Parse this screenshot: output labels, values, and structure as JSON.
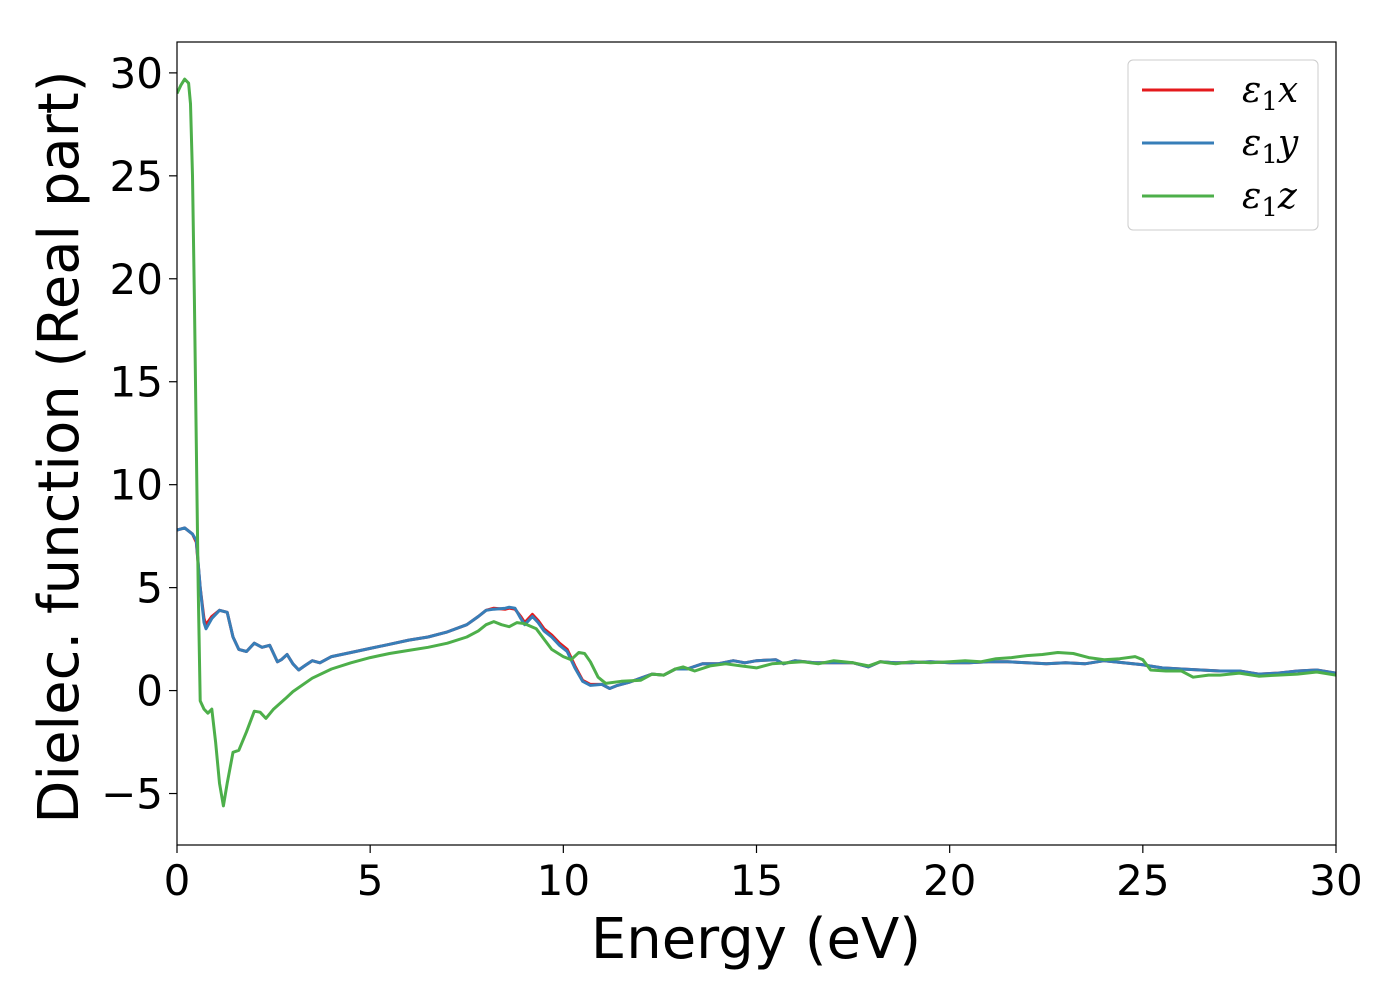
{
  "chart_data": {
    "type": "line",
    "title": "",
    "xlabel": "Energy (eV)",
    "ylabel": "Dielec. function (Real part)",
    "xlim": [
      0,
      30
    ],
    "ylim": [
      -7.5,
      31.5
    ],
    "xticks": [
      0,
      5,
      10,
      15,
      20,
      25,
      30
    ],
    "yticks": [
      -5,
      0,
      5,
      10,
      15,
      20,
      25,
      30
    ],
    "xtick_labels": [
      "0",
      "5",
      "10",
      "15",
      "20",
      "25",
      "30"
    ],
    "ytick_labels": [
      "−5",
      "0",
      "5",
      "10",
      "15",
      "20",
      "25",
      "30"
    ],
    "grid": false,
    "legend_position": "top-right",
    "series": [
      {
        "name": "ε1x",
        "legend": {
          "base": "ε",
          "sub": "1",
          "tail": "x"
        },
        "color": "#e41a1c",
        "points": [
          [
            0,
            7.8
          ],
          [
            0.2,
            7.9
          ],
          [
            0.4,
            7.6
          ],
          [
            0.5,
            7.2
          ],
          [
            0.6,
            5.0
          ],
          [
            0.7,
            3.5
          ],
          [
            0.75,
            3.2
          ],
          [
            0.9,
            3.6
          ],
          [
            1.1,
            3.9
          ],
          [
            1.3,
            3.8
          ],
          [
            1.45,
            2.6
          ],
          [
            1.6,
            2.0
          ],
          [
            1.8,
            1.9
          ],
          [
            2.0,
            2.3
          ],
          [
            2.2,
            2.1
          ],
          [
            2.4,
            2.2
          ],
          [
            2.6,
            1.4
          ],
          [
            2.7,
            1.5
          ],
          [
            2.85,
            1.75
          ],
          [
            3.0,
            1.3
          ],
          [
            3.15,
            1.0
          ],
          [
            3.3,
            1.2
          ],
          [
            3.5,
            1.45
          ],
          [
            3.7,
            1.35
          ],
          [
            4.0,
            1.65
          ],
          [
            4.5,
            1.85
          ],
          [
            5.0,
            2.05
          ],
          [
            5.5,
            2.25
          ],
          [
            6.0,
            2.45
          ],
          [
            6.5,
            2.6
          ],
          [
            7.0,
            2.85
          ],
          [
            7.5,
            3.2
          ],
          [
            7.8,
            3.6
          ],
          [
            8.0,
            3.9
          ],
          [
            8.2,
            4.0
          ],
          [
            8.5,
            3.95
          ],
          [
            8.6,
            4.0
          ],
          [
            8.75,
            3.95
          ],
          [
            8.9,
            3.6
          ],
          [
            9.0,
            3.3
          ],
          [
            9.2,
            3.7
          ],
          [
            9.35,
            3.4
          ],
          [
            9.5,
            3.0
          ],
          [
            9.7,
            2.7
          ],
          [
            9.9,
            2.3
          ],
          [
            10.1,
            2.0
          ],
          [
            10.3,
            1.2
          ],
          [
            10.5,
            0.5
          ],
          [
            10.7,
            0.3
          ],
          [
            11.0,
            0.3
          ],
          [
            11.2,
            0.1
          ],
          [
            11.4,
            0.25
          ],
          [
            11.7,
            0.4
          ],
          [
            12.0,
            0.6
          ],
          [
            12.3,
            0.8
          ],
          [
            12.6,
            0.75
          ],
          [
            12.9,
            1.05
          ],
          [
            13.2,
            1.05
          ],
          [
            13.6,
            1.3
          ],
          [
            14.0,
            1.3
          ],
          [
            14.4,
            1.45
          ],
          [
            14.7,
            1.35
          ],
          [
            15.0,
            1.45
          ],
          [
            15.5,
            1.5
          ],
          [
            15.7,
            1.3
          ],
          [
            16.0,
            1.45
          ],
          [
            16.5,
            1.35
          ],
          [
            17.0,
            1.35
          ],
          [
            17.5,
            1.35
          ],
          [
            17.9,
            1.15
          ],
          [
            18.2,
            1.4
          ],
          [
            18.6,
            1.35
          ],
          [
            19.0,
            1.35
          ],
          [
            19.5,
            1.4
          ],
          [
            20.0,
            1.35
          ],
          [
            20.5,
            1.35
          ],
          [
            21.0,
            1.4
          ],
          [
            21.5,
            1.4
          ],
          [
            22.0,
            1.35
          ],
          [
            22.5,
            1.3
          ],
          [
            23.0,
            1.35
          ],
          [
            23.5,
            1.3
          ],
          [
            24.0,
            1.45
          ],
          [
            24.5,
            1.35
          ],
          [
            25.0,
            1.25
          ],
          [
            25.5,
            1.1
          ],
          [
            26.0,
            1.05
          ],
          [
            26.5,
            1.0
          ],
          [
            27.0,
            0.95
          ],
          [
            27.5,
            0.95
          ],
          [
            28.0,
            0.8
          ],
          [
            28.5,
            0.85
          ],
          [
            29.0,
            0.95
          ],
          [
            29.5,
            1.0
          ],
          [
            30.0,
            0.85
          ]
        ]
      },
      {
        "name": "ε1y",
        "legend": {
          "base": "ε",
          "sub": "1",
          "tail": "y"
        },
        "color": "#377eb8",
        "points": [
          [
            0,
            7.8
          ],
          [
            0.2,
            7.9
          ],
          [
            0.4,
            7.6
          ],
          [
            0.5,
            7.3
          ],
          [
            0.6,
            5.0
          ],
          [
            0.7,
            3.3
          ],
          [
            0.75,
            3.0
          ],
          [
            0.9,
            3.5
          ],
          [
            1.1,
            3.9
          ],
          [
            1.3,
            3.8
          ],
          [
            1.45,
            2.6
          ],
          [
            1.6,
            2.0
          ],
          [
            1.8,
            1.9
          ],
          [
            2.0,
            2.3
          ],
          [
            2.2,
            2.1
          ],
          [
            2.4,
            2.2
          ],
          [
            2.6,
            1.4
          ],
          [
            2.7,
            1.5
          ],
          [
            2.85,
            1.75
          ],
          [
            3.0,
            1.3
          ],
          [
            3.15,
            1.0
          ],
          [
            3.3,
            1.2
          ],
          [
            3.5,
            1.45
          ],
          [
            3.7,
            1.35
          ],
          [
            4.0,
            1.65
          ],
          [
            4.5,
            1.85
          ],
          [
            5.0,
            2.05
          ],
          [
            5.5,
            2.25
          ],
          [
            6.0,
            2.45
          ],
          [
            6.5,
            2.6
          ],
          [
            7.0,
            2.85
          ],
          [
            7.5,
            3.2
          ],
          [
            7.8,
            3.6
          ],
          [
            8.0,
            3.9
          ],
          [
            8.2,
            3.95
          ],
          [
            8.5,
            4.0
          ],
          [
            8.6,
            4.05
          ],
          [
            8.75,
            4.0
          ],
          [
            8.9,
            3.5
          ],
          [
            9.0,
            3.2
          ],
          [
            9.2,
            3.6
          ],
          [
            9.35,
            3.3
          ],
          [
            9.5,
            2.9
          ],
          [
            9.7,
            2.6
          ],
          [
            9.9,
            2.2
          ],
          [
            10.1,
            1.9
          ],
          [
            10.3,
            1.1
          ],
          [
            10.5,
            0.45
          ],
          [
            10.7,
            0.25
          ],
          [
            11.0,
            0.3
          ],
          [
            11.2,
            0.1
          ],
          [
            11.4,
            0.25
          ],
          [
            11.7,
            0.4
          ],
          [
            12.0,
            0.6
          ],
          [
            12.3,
            0.8
          ],
          [
            12.6,
            0.75
          ],
          [
            12.9,
            1.05
          ],
          [
            13.2,
            1.05
          ],
          [
            13.6,
            1.3
          ],
          [
            14.0,
            1.3
          ],
          [
            14.4,
            1.45
          ],
          [
            14.7,
            1.35
          ],
          [
            15.0,
            1.45
          ],
          [
            15.5,
            1.5
          ],
          [
            15.7,
            1.3
          ],
          [
            16.0,
            1.45
          ],
          [
            16.5,
            1.35
          ],
          [
            17.0,
            1.35
          ],
          [
            17.5,
            1.35
          ],
          [
            17.9,
            1.15
          ],
          [
            18.2,
            1.4
          ],
          [
            18.6,
            1.35
          ],
          [
            19.0,
            1.35
          ],
          [
            19.5,
            1.4
          ],
          [
            20.0,
            1.35
          ],
          [
            20.5,
            1.35
          ],
          [
            21.0,
            1.4
          ],
          [
            21.5,
            1.4
          ],
          [
            22.0,
            1.35
          ],
          [
            22.5,
            1.3
          ],
          [
            23.0,
            1.35
          ],
          [
            23.5,
            1.3
          ],
          [
            24.0,
            1.45
          ],
          [
            24.5,
            1.35
          ],
          [
            25.0,
            1.25
          ],
          [
            25.5,
            1.1
          ],
          [
            26.0,
            1.05
          ],
          [
            26.5,
            1.0
          ],
          [
            27.0,
            0.95
          ],
          [
            27.5,
            0.95
          ],
          [
            28.0,
            0.8
          ],
          [
            28.5,
            0.85
          ],
          [
            29.0,
            0.95
          ],
          [
            29.5,
            1.0
          ],
          [
            30.0,
            0.85
          ]
        ]
      },
      {
        "name": "ε1z",
        "legend": {
          "base": "ε",
          "sub": "1",
          "tail": "z"
        },
        "color": "#4daf4a",
        "points": [
          [
            0,
            29.0
          ],
          [
            0.1,
            29.4
          ],
          [
            0.2,
            29.7
          ],
          [
            0.3,
            29.5
          ],
          [
            0.35,
            28.5
          ],
          [
            0.4,
            25.0
          ],
          [
            0.45,
            19.0
          ],
          [
            0.5,
            12.0
          ],
          [
            0.55,
            5.0
          ],
          [
            0.6,
            -0.5
          ],
          [
            0.7,
            -0.9
          ],
          [
            0.8,
            -1.1
          ],
          [
            0.9,
            -0.9
          ],
          [
            1.0,
            -2.5
          ],
          [
            1.1,
            -4.5
          ],
          [
            1.2,
            -5.6
          ],
          [
            1.3,
            -4.5
          ],
          [
            1.45,
            -3.0
          ],
          [
            1.6,
            -2.9
          ],
          [
            1.8,
            -2.0
          ],
          [
            2.0,
            -1.0
          ],
          [
            2.15,
            -1.05
          ],
          [
            2.3,
            -1.35
          ],
          [
            2.5,
            -0.9
          ],
          [
            2.8,
            -0.4
          ],
          [
            3.0,
            -0.05
          ],
          [
            3.5,
            0.6
          ],
          [
            4.0,
            1.05
          ],
          [
            4.5,
            1.35
          ],
          [
            5.0,
            1.6
          ],
          [
            5.5,
            1.8
          ],
          [
            6.0,
            1.95
          ],
          [
            6.5,
            2.1
          ],
          [
            7.0,
            2.3
          ],
          [
            7.5,
            2.6
          ],
          [
            7.8,
            2.9
          ],
          [
            8.0,
            3.2
          ],
          [
            8.2,
            3.35
          ],
          [
            8.4,
            3.2
          ],
          [
            8.6,
            3.1
          ],
          [
            8.8,
            3.3
          ],
          [
            9.0,
            3.25
          ],
          [
            9.3,
            3.0
          ],
          [
            9.5,
            2.5
          ],
          [
            9.7,
            2.0
          ],
          [
            10.0,
            1.65
          ],
          [
            10.2,
            1.5
          ],
          [
            10.4,
            1.85
          ],
          [
            10.55,
            1.8
          ],
          [
            10.7,
            1.4
          ],
          [
            10.9,
            0.65
          ],
          [
            11.1,
            0.35
          ],
          [
            11.5,
            0.45
          ],
          [
            12.0,
            0.5
          ],
          [
            12.3,
            0.8
          ],
          [
            12.6,
            0.75
          ],
          [
            12.9,
            1.05
          ],
          [
            13.1,
            1.15
          ],
          [
            13.4,
            0.95
          ],
          [
            13.8,
            1.2
          ],
          [
            14.2,
            1.3
          ],
          [
            14.6,
            1.2
          ],
          [
            15.0,
            1.1
          ],
          [
            15.4,
            1.3
          ],
          [
            15.8,
            1.35
          ],
          [
            16.2,
            1.4
          ],
          [
            16.6,
            1.3
          ],
          [
            17.0,
            1.45
          ],
          [
            17.5,
            1.35
          ],
          [
            17.9,
            1.2
          ],
          [
            18.2,
            1.4
          ],
          [
            18.6,
            1.3
          ],
          [
            19.0,
            1.4
          ],
          [
            19.5,
            1.35
          ],
          [
            20.0,
            1.4
          ],
          [
            20.4,
            1.45
          ],
          [
            20.8,
            1.4
          ],
          [
            21.2,
            1.55
          ],
          [
            21.6,
            1.6
          ],
          [
            22.0,
            1.7
          ],
          [
            22.4,
            1.75
          ],
          [
            22.8,
            1.85
          ],
          [
            23.2,
            1.8
          ],
          [
            23.6,
            1.6
          ],
          [
            24.0,
            1.5
          ],
          [
            24.4,
            1.55
          ],
          [
            24.8,
            1.65
          ],
          [
            25.0,
            1.5
          ],
          [
            25.2,
            1.0
          ],
          [
            25.6,
            0.95
          ],
          [
            26.0,
            0.95
          ],
          [
            26.3,
            0.65
          ],
          [
            26.7,
            0.75
          ],
          [
            27.0,
            0.75
          ],
          [
            27.5,
            0.85
          ],
          [
            28.0,
            0.7
          ],
          [
            28.5,
            0.75
          ],
          [
            29.0,
            0.8
          ],
          [
            29.5,
            0.9
          ],
          [
            30.0,
            0.75
          ]
        ]
      }
    ]
  }
}
